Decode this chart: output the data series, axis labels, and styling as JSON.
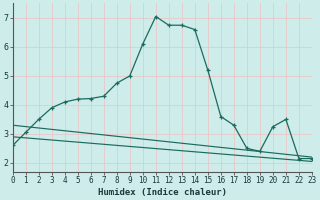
{
  "xlabel": "Humidex (Indice chaleur)",
  "background_color": "#ceecea",
  "grid_color": "#e8c8c8",
  "line_color": "#1a6b5e",
  "x_ticks": [
    0,
    1,
    2,
    3,
    4,
    5,
    6,
    7,
    8,
    9,
    10,
    11,
    12,
    13,
    14,
    15,
    16,
    17,
    18,
    19,
    20,
    21,
    22,
    23
  ],
  "y_ticks": [
    2,
    3,
    4,
    5,
    6,
    7
  ],
  "xlim": [
    0,
    23
  ],
  "ylim": [
    1.7,
    7.5
  ],
  "series1_x": [
    0,
    1,
    2,
    3,
    4,
    5,
    6,
    7,
    8,
    9,
    10,
    11,
    12,
    13,
    14,
    15,
    16,
    17,
    18,
    19,
    20,
    21,
    22,
    23
  ],
  "series1_y": [
    2.6,
    3.05,
    3.5,
    3.9,
    4.1,
    4.2,
    4.22,
    4.3,
    4.75,
    5.0,
    6.1,
    7.05,
    6.75,
    6.75,
    6.6,
    5.2,
    3.6,
    3.3,
    2.5,
    2.4,
    3.25,
    3.5,
    2.15,
    2.15
  ],
  "series2_x": [
    0,
    23
  ],
  "series2_y": [
    3.3,
    2.2
  ],
  "series3_x": [
    0,
    23
  ],
  "series3_y": [
    2.9,
    2.05
  ],
  "tick_fontsize": 5.5,
  "xlabel_fontsize": 6.5
}
